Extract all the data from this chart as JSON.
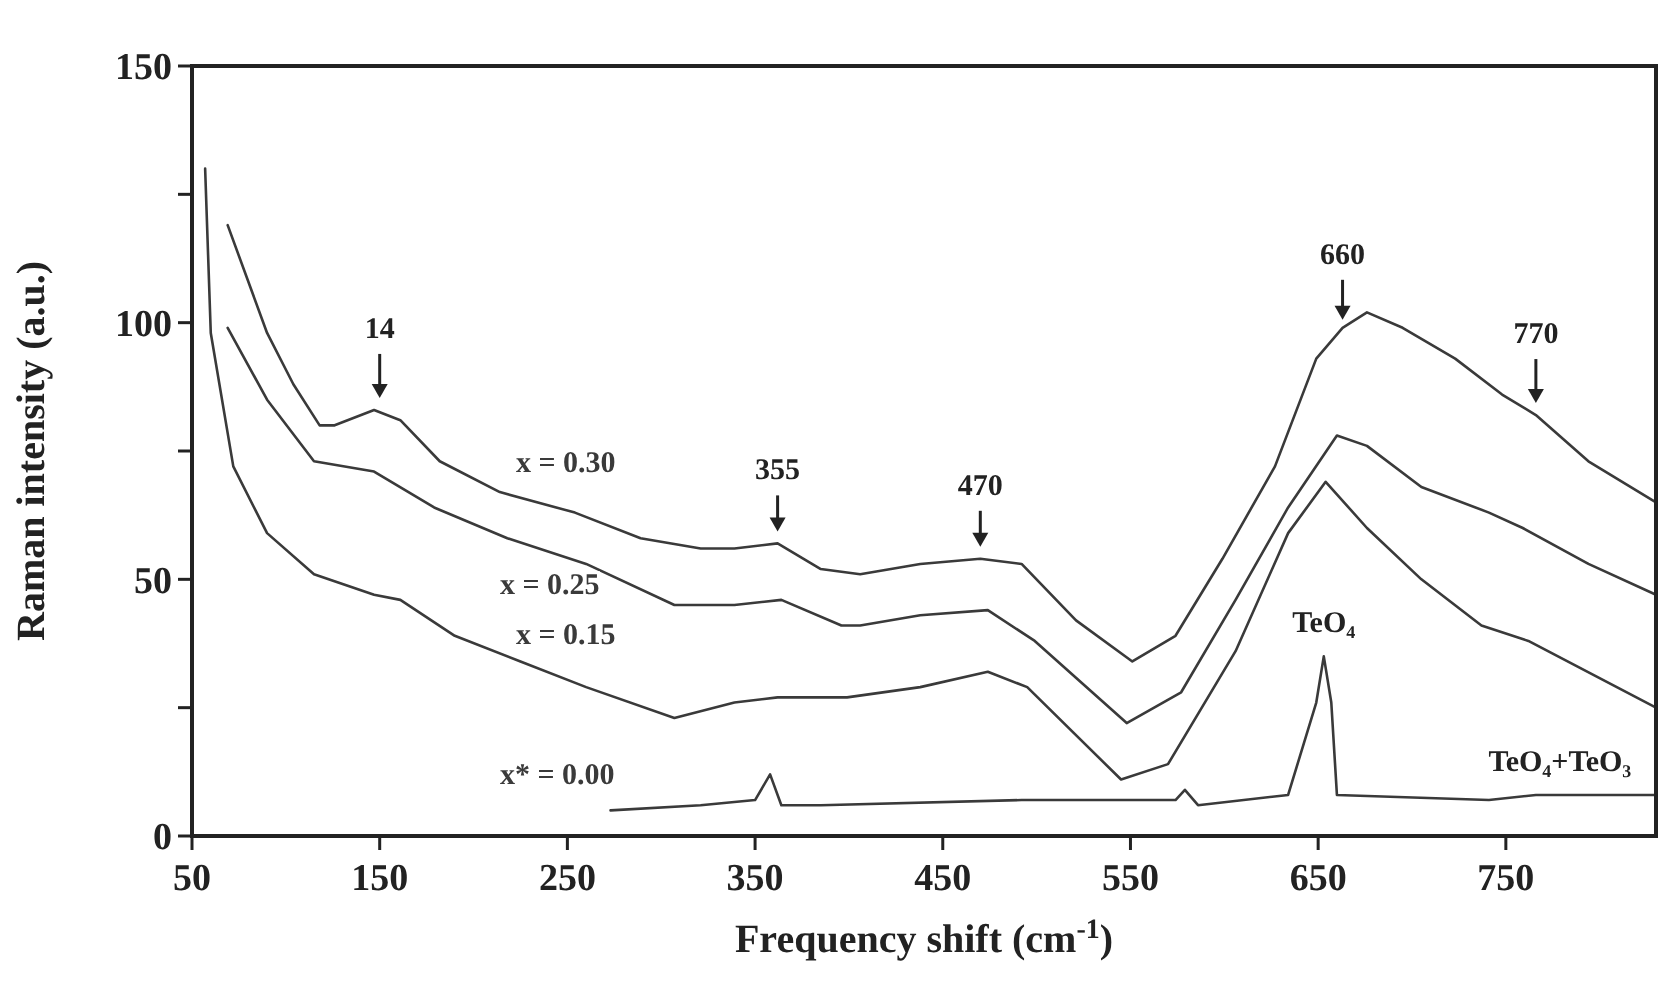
{
  "chart_data": {
    "type": "line",
    "xlabel": "Frequency shift (cm$^{-1}$)",
    "ylabel": "Raman intensity (a.u.)",
    "xlim": [
      50,
      830
    ],
    "ylim": [
      0,
      150
    ],
    "xticks": [
      50,
      150,
      250,
      350,
      450,
      550,
      650,
      750
    ],
    "yticks": [
      0,
      {
        "value": 25,
        "label": null
      },
      50,
      {
        "value": 75,
        "label": null
      },
      100,
      {
        "value": 125,
        "label": null
      },
      150
    ],
    "grid": false,
    "marker": "none",
    "line_style": "solid",
    "series": [
      {
        "name": "x = 0.30",
        "color": "#3a3a3a",
        "x": [
          69,
          90,
          104,
          118,
          126,
          147,
          161,
          182,
          214,
          254,
          289,
          321,
          339,
          362,
          385,
          406,
          438,
          470,
          492,
          521,
          551,
          574,
          599,
          627,
          649,
          663,
          676,
          695,
          723,
          748,
          766,
          794,
          830
        ],
        "values": [
          119,
          98,
          88,
          80,
          80,
          83,
          81,
          73,
          67,
          63,
          58,
          56,
          56,
          57,
          52,
          51,
          53,
          54,
          53,
          42,
          34,
          39,
          54,
          72,
          93,
          99,
          102,
          99,
          93,
          86,
          82,
          73,
          65
        ]
      },
      {
        "name": "x = 0.25",
        "color": "#3a3a3a",
        "x": [
          69,
          90,
          115,
          147,
          179,
          218,
          260,
          307,
          339,
          364,
          396,
          406,
          438,
          474,
          499,
          548,
          577,
          606,
          634,
          660,
          676,
          705,
          741,
          759,
          794,
          830
        ],
        "values": [
          99,
          85,
          73,
          71,
          64,
          58,
          53,
          45,
          45,
          46,
          41,
          41,
          43,
          44,
          38,
          22,
          28,
          46,
          64,
          78,
          76,
          68,
          63,
          60,
          53,
          47
        ]
      },
      {
        "name": "x = 0.15",
        "color": "#3a3a3a",
        "x": [
          57,
          60,
          72,
          90,
          115,
          147,
          161,
          190,
          225,
          260,
          307,
          339,
          362,
          399,
          438,
          474,
          495,
          545,
          570,
          606,
          634,
          654,
          676,
          705,
          737,
          762,
          830
        ],
        "values": [
          130,
          98,
          72,
          59,
          51,
          47,
          46,
          39,
          34,
          29,
          23,
          26,
          27,
          27,
          29,
          32,
          29,
          11,
          14,
          36,
          59,
          69,
          60,
          50,
          41,
          38,
          25
        ]
      },
      {
        "name": "x* = 0.00",
        "color": "#3a3a3a",
        "x": [
          273,
          321,
          350,
          358,
          364,
          385,
          492,
          574,
          579,
          586,
          634,
          649,
          653,
          657,
          660,
          741,
          766,
          805,
          830
        ],
        "values": [
          5,
          6,
          7,
          12,
          6,
          6,
          7,
          7,
          9,
          6,
          8,
          26,
          35,
          26,
          8,
          7,
          8,
          8,
          8
        ]
      }
    ],
    "annotations": [
      {
        "text": "14",
        "x": 150,
        "y": 83
      },
      {
        "text": "355",
        "x": 362,
        "y": 57
      },
      {
        "text": "470",
        "x": 470,
        "y": 54
      },
      {
        "text": "660",
        "x": 663,
        "y": 99
      },
      {
        "text": "770",
        "x": 766,
        "y": 82
      },
      {
        "text": "TeO₄",
        "x": 653,
        "y": 35
      },
      {
        "text": "TeO₄+TeO₃",
        "x": 766,
        "y": 8
      }
    ]
  }
}
